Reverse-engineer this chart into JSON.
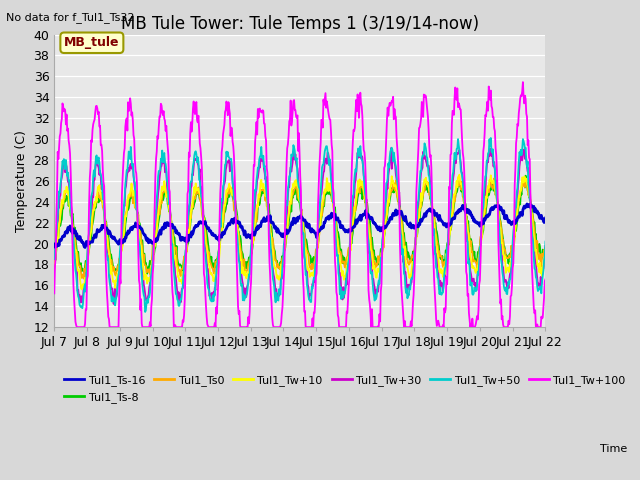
{
  "title": "MB Tule Tower: Tule Temps 1 (3/19/14-now)",
  "no_data_label": "No data for f_Tul1_Ts32",
  "mb_tule_label": "MB_tule",
  "ylabel": "Temperature (C)",
  "xlabel_time": "Time",
  "ylim": [
    12,
    40
  ],
  "yticks": [
    12,
    14,
    16,
    18,
    20,
    22,
    24,
    26,
    28,
    30,
    32,
    34,
    36,
    38,
    40
  ],
  "x_tick_labels": [
    "Jul 7",
    "Jul 8",
    "Jul 9",
    "Jul 10",
    "Jul 11",
    "Jul 12",
    "Jul 13",
    "Jul 14",
    "Jul 15",
    "Jul 16",
    "Jul 17",
    "Jul 18",
    "Jul 19",
    "Jul 20",
    "Jul 21",
    "Jul 22"
  ],
  "series": [
    {
      "name": "Tul1_Ts-16",
      "color": "#0000cc",
      "lw": 2.0,
      "zorder": 5
    },
    {
      "name": "Tul1_Ts-8",
      "color": "#00cc00",
      "lw": 1.3,
      "zorder": 3
    },
    {
      "name": "Tul1_Ts0",
      "color": "#ffaa00",
      "lw": 1.3,
      "zorder": 3
    },
    {
      "name": "Tul1_Tw+10",
      "color": "#ffff00",
      "lw": 1.3,
      "zorder": 3
    },
    {
      "name": "Tul1_Tw+30",
      "color": "#cc00cc",
      "lw": 1.3,
      "zorder": 2
    },
    {
      "name": "Tul1_Tw+50",
      "color": "#00cccc",
      "lw": 1.3,
      "zorder": 4
    },
    {
      "name": "Tul1_Tw+100",
      "color": "#ff00ff",
      "lw": 1.3,
      "zorder": 6
    }
  ],
  "fig_bg": "#d8d8d8",
  "plot_bg": "#e8e8e8",
  "grid_color": "#ffffff",
  "title_fontsize": 12,
  "label_fontsize": 9,
  "tick_fontsize": 9,
  "legend_fontsize": 8
}
